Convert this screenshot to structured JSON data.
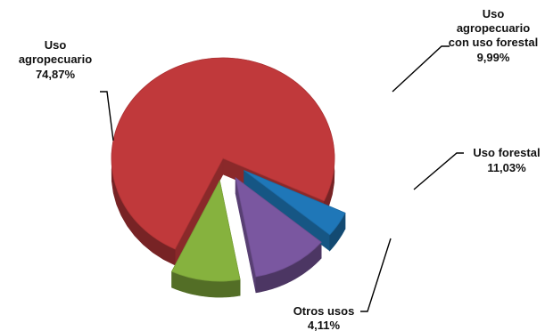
{
  "chart_data": {
    "type": "pie",
    "style": "3d-exploded",
    "slices": [
      {
        "label_lines": [
          "Uso",
          "agropecuario"
        ],
        "value_text": "74,87%",
        "value": 74.87,
        "color": "#c0393b",
        "exploded": false
      },
      {
        "label_lines": [
          "Uso",
          "agropecuario",
          "con uso forestal"
        ],
        "value_text": "9,99%",
        "value": 9.99,
        "color": "#86b23e",
        "exploded": true
      },
      {
        "label_lines": [
          "Uso forestal"
        ],
        "value_text": "11,03%",
        "value": 11.03,
        "color": "#7a57a0",
        "exploded": true
      },
      {
        "label_lines": [
          "Otros usos"
        ],
        "value_text": "4,11%",
        "value": 4.11,
        "color": "#1f77b8",
        "exploded": true
      }
    ]
  }
}
